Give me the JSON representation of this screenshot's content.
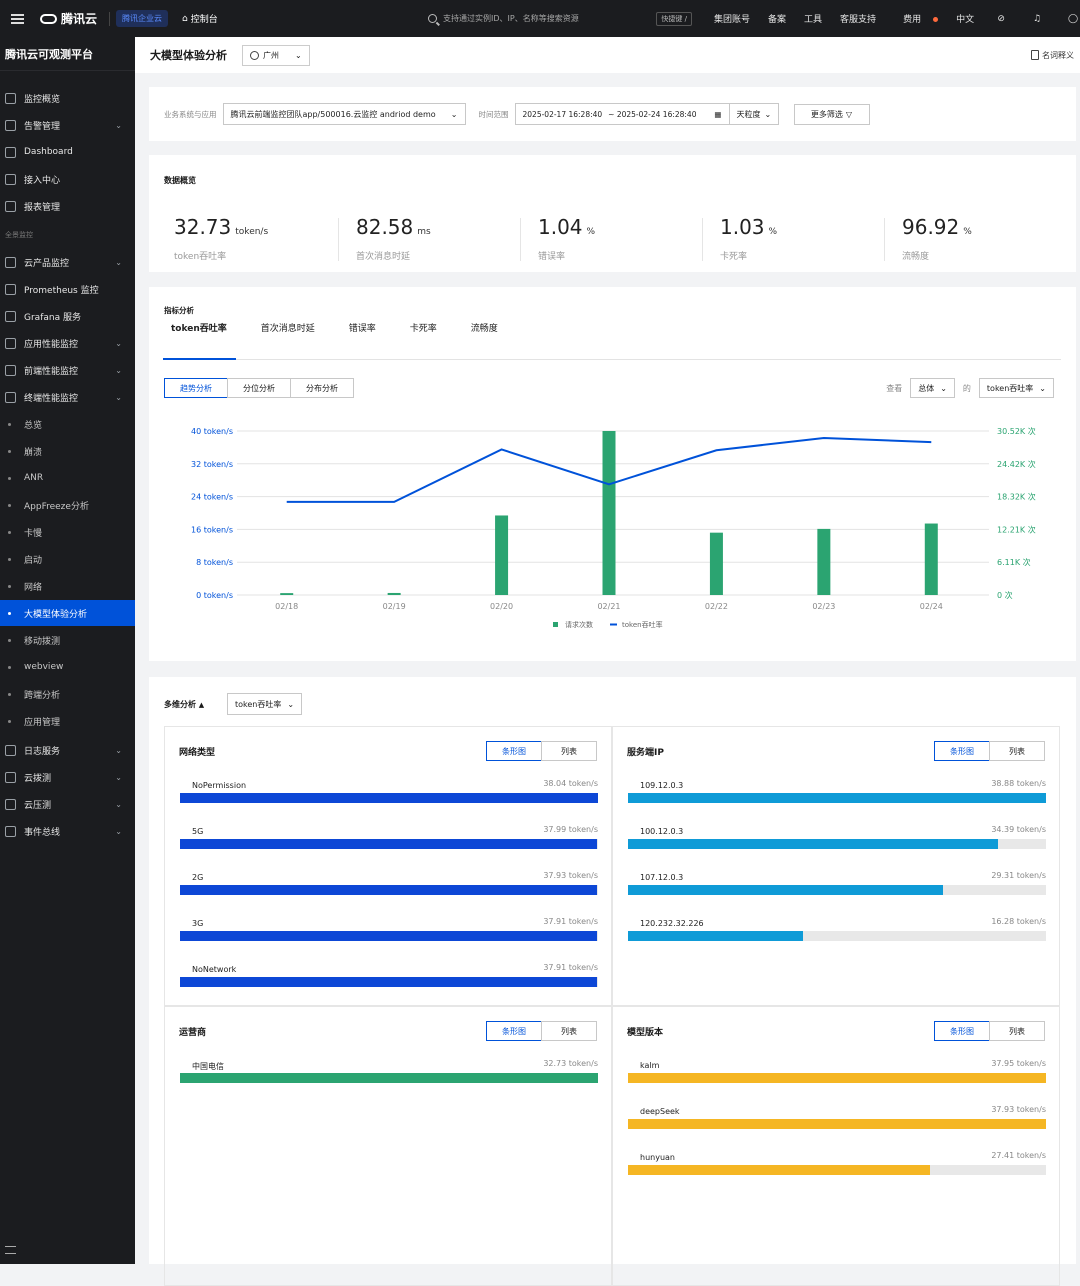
{
  "topbar": {
    "brand": "腾讯云",
    "enterprise": "腾讯企业云",
    "console": "控制台",
    "search_placeholder": "支持通过实例ID、IP、名称等搜索资源",
    "shortcut": "快捷键 /",
    "nav": [
      "集团账号",
      "备案",
      "工具",
      "客服支持",
      "费用",
      "中文"
    ]
  },
  "sidebar": {
    "title": "腾讯云可观测平台",
    "group_label": "全景监控",
    "items": [
      {
        "label": "监控概览",
        "icon": "grid-icon",
        "chevron": false
      },
      {
        "label": "告警管理",
        "icon": "bell-icon",
        "chevron": true
      },
      {
        "label": "Dashboard",
        "icon": "clock-icon",
        "chevron": false
      },
      {
        "label": "接入中心",
        "icon": "cube-icon",
        "chevron": false
      },
      {
        "label": "报表管理",
        "icon": "report-icon",
        "chevron": false
      },
      {
        "label": "云产品监控",
        "icon": "cloud-icon",
        "chevron": true
      },
      {
        "label": "Prometheus 监控",
        "icon": "prometheus-icon",
        "chevron": false
      },
      {
        "label": "Grafana 服务",
        "icon": "grafana-icon",
        "chevron": false
      },
      {
        "label": "应用性能监控",
        "icon": "apm-icon",
        "chevron": true
      },
      {
        "label": "前端性能监控",
        "icon": "frontend-icon",
        "chevron": true
      },
      {
        "label": "终端性能监控",
        "icon": "terminal-icon",
        "chevron": true
      }
    ],
    "sub_items": [
      "总览",
      "崩溃",
      "ANR",
      "AppFreeze分析",
      "卡慢",
      "启动",
      "网络",
      "大模型体验分析",
      "移动拨测",
      "webview",
      "跨端分析",
      "应用管理"
    ],
    "active_sub": "大模型体验分析",
    "bottom_items": [
      {
        "label": "日志服务",
        "icon": "log-icon",
        "chevron": true
      },
      {
        "label": "云拨测",
        "icon": "probe-icon",
        "chevron": true
      },
      {
        "label": "云压测",
        "icon": "pressure-icon",
        "chevron": true
      },
      {
        "label": "事件总线",
        "icon": "event-icon",
        "chevron": true
      }
    ]
  },
  "header": {
    "title": "大模型体验分析",
    "region": "广州",
    "glossary": "名词释义"
  },
  "filter": {
    "app_label": "业务系统与应用",
    "app_value": "腾讯云前端监控团队app/500016.云监控 andriod demo",
    "time_label": "时间范围",
    "time_start": "2025-02-17 16:28:40",
    "time_end": "~ 2025-02-24 16:28:40",
    "granularity": "天粒度",
    "more": "更多筛选"
  },
  "overview": {
    "title": "数据概览",
    "kpis": [
      {
        "value": "32.73",
        "unit": "token/s",
        "label": "token吞吐率"
      },
      {
        "value": "82.58",
        "unit": "ms",
        "label": "首次消息时延"
      },
      {
        "value": "1.04",
        "unit": "%",
        "label": "错误率"
      },
      {
        "value": "1.03",
        "unit": "%",
        "label": "卡死率"
      },
      {
        "value": "96.92",
        "unit": "%",
        "label": "流畅度"
      }
    ]
  },
  "metrics": {
    "title": "指标分析",
    "tabs": [
      "token吞吐率",
      "首次消息时延",
      "错误率",
      "卡死率",
      "流畅度"
    ],
    "segments": [
      "趋势分析",
      "分位分析",
      "分布分析"
    ],
    "view_label": "查看",
    "view_value": "总体",
    "of_label": "的",
    "metric_value": "token吞吐率"
  },
  "chart_data": {
    "type": "bar",
    "categories": [
      "02/18",
      "02/19",
      "02/20",
      "02/21",
      "02/22",
      "02/23",
      "02/24"
    ],
    "left_ticks": [
      "0 token/s",
      "8 token/s",
      "16 token/s",
      "24 token/s",
      "32 token/s",
      "40 token/s"
    ],
    "right_ticks": [
      "0 次",
      "6.11K 次",
      "12.21K 次",
      "18.32K 次",
      "24.42K 次",
      "30.52K 次"
    ],
    "ylim_left": [
      0,
      40
    ],
    "ylim_right": [
      0,
      30520
    ],
    "series": [
      {
        "name": "请求次数",
        "type": "bar",
        "axis": "right",
        "color": "#2ba471",
        "values": [
          350,
          380,
          14800,
          30520,
          11600,
          12300,
          13300
        ]
      },
      {
        "name": "token吞吐率",
        "type": "line",
        "axis": "left",
        "color": "#0052d9",
        "values": [
          22.7,
          22.7,
          35.5,
          27.0,
          35.3,
          38.3,
          37.3
        ]
      }
    ],
    "legend_position": "bottom-center",
    "grid": true
  },
  "multi": {
    "title": "多维分析",
    "metric": "token吞吐率",
    "view_bar": "条形图",
    "view_list": "列表",
    "panels": [
      {
        "title": "网络类型",
        "color": "#0d47d6",
        "max": 38.04,
        "rows": [
          {
            "name": "NoPermission",
            "value": 38.04,
            "display": "38.04 token/s"
          },
          {
            "name": "5G",
            "value": 37.99,
            "display": "37.99 token/s"
          },
          {
            "name": "2G",
            "value": 37.93,
            "display": "37.93 token/s"
          },
          {
            "name": "3G",
            "value": 37.91,
            "display": "37.91 token/s"
          },
          {
            "name": "NoNetwork",
            "value": 37.91,
            "display": "37.91 token/s"
          }
        ]
      },
      {
        "title": "服务端IP",
        "color": "#0f9bd7",
        "max": 38.88,
        "rows": [
          {
            "name": "109.12.0.3",
            "value": 38.88,
            "display": "38.88 token/s"
          },
          {
            "name": "100.12.0.3",
            "value": 34.39,
            "display": "34.39 token/s"
          },
          {
            "name": "107.12.0.3",
            "value": 29.31,
            "display": "29.31 token/s"
          },
          {
            "name": "120.232.32.226",
            "value": 16.28,
            "display": "16.28 token/s"
          }
        ]
      },
      {
        "title": "运营商",
        "color": "#2ba471",
        "max": 32.73,
        "rows": [
          {
            "name": "中国电信",
            "value": 32.73,
            "display": "32.73 token/s"
          }
        ]
      },
      {
        "title": "模型版本",
        "color": "#f5b623",
        "max": 37.95,
        "rows": [
          {
            "name": "kalm",
            "value": 37.95,
            "display": "37.95 token/s"
          },
          {
            "name": "deepSeek",
            "value": 37.93,
            "display": "37.93 token/s"
          },
          {
            "name": "hunyuan",
            "value": 27.41,
            "display": "27.41 token/s"
          }
        ]
      }
    ]
  }
}
